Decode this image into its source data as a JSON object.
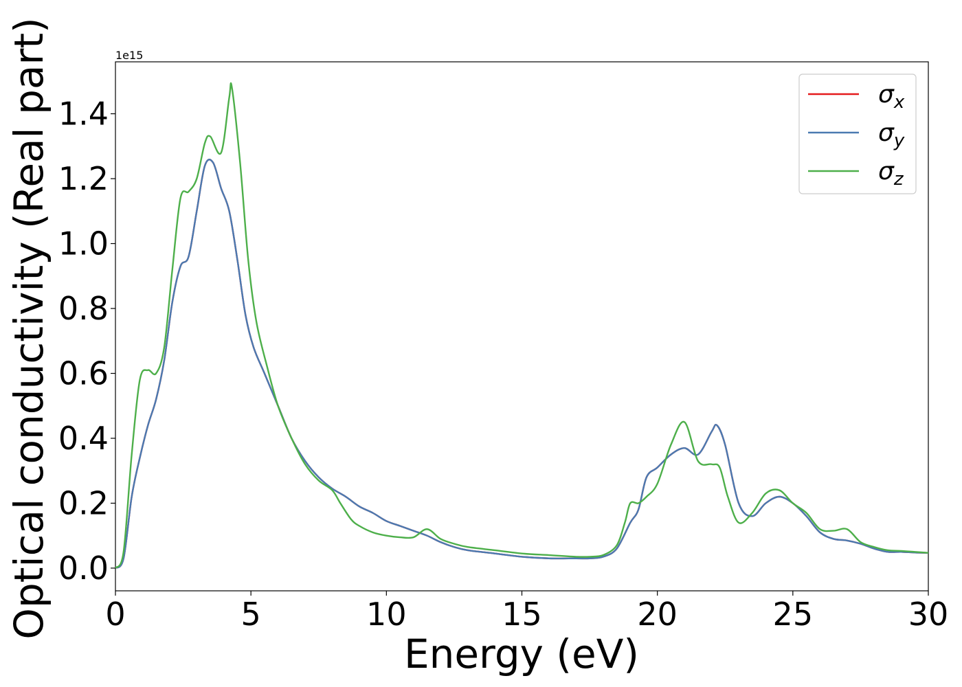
{
  "chart_data": {
    "type": "line",
    "xlabel": "Energy (eV)",
    "ylabel": "Optical conductivity (Real part)",
    "offset_label": "1e15",
    "xlim": [
      0,
      30
    ],
    "ylim": [
      -0.07,
      1.56
    ],
    "x_ticks": [
      0,
      5,
      10,
      15,
      20,
      25,
      30
    ],
    "x_tick_labels": [
      "0",
      "5",
      "10",
      "15",
      "20",
      "25",
      "30"
    ],
    "y_ticks": [
      0.0,
      0.2,
      0.4,
      0.6,
      0.8,
      1.0,
      1.2,
      1.4
    ],
    "y_tick_labels": [
      "0.0",
      "0.2",
      "0.4",
      "0.6",
      "0.8",
      "1.0",
      "1.2",
      "1.4"
    ],
    "grid": false,
    "legend_position": "top-right",
    "series": [
      {
        "name": "σx",
        "base": "σ",
        "sub": "x",
        "color": "#e41a1c",
        "x": [
          0,
          0.3,
          0.6,
          0.9,
          1.2,
          1.5,
          1.8,
          2.1,
          2.4,
          2.7,
          3.0,
          3.3,
          3.6,
          3.9,
          4.2,
          4.5,
          4.8,
          5.1,
          5.5,
          6.0,
          6.5,
          7.0,
          7.5,
          8.0,
          8.5,
          9.0,
          9.5,
          10.0,
          10.5,
          11.0,
          11.5,
          12.0,
          12.5,
          13.0,
          14.0,
          15.0,
          16.0,
          17.0,
          17.5,
          18.0,
          18.5,
          19.0,
          19.3,
          19.6,
          20.0,
          20.5,
          21.0,
          21.5,
          22.0,
          22.2,
          22.5,
          23.0,
          23.5,
          24.0,
          24.5,
          25.0,
          25.5,
          26.0,
          26.5,
          27.0,
          27.5,
          28.0,
          28.5,
          29.0,
          29.5,
          30.0
        ],
        "y": [
          0.0,
          0.03,
          0.22,
          0.34,
          0.44,
          0.52,
          0.64,
          0.82,
          0.93,
          0.96,
          1.1,
          1.24,
          1.25,
          1.17,
          1.1,
          0.95,
          0.78,
          0.68,
          0.6,
          0.5,
          0.4,
          0.33,
          0.28,
          0.245,
          0.22,
          0.19,
          0.17,
          0.145,
          0.13,
          0.115,
          0.1,
          0.08,
          0.065,
          0.055,
          0.045,
          0.035,
          0.03,
          0.03,
          0.03,
          0.035,
          0.06,
          0.14,
          0.18,
          0.28,
          0.31,
          0.35,
          0.37,
          0.35,
          0.42,
          0.44,
          0.38,
          0.2,
          0.16,
          0.2,
          0.22,
          0.2,
          0.16,
          0.11,
          0.09,
          0.085,
          0.075,
          0.06,
          0.05,
          0.05,
          0.048,
          0.047
        ]
      },
      {
        "name": "σy",
        "base": "σ",
        "sub": "y",
        "color": "#4a7ab1",
        "x": [
          0,
          0.3,
          0.6,
          0.9,
          1.2,
          1.5,
          1.8,
          2.1,
          2.4,
          2.7,
          3.0,
          3.3,
          3.6,
          3.9,
          4.2,
          4.5,
          4.8,
          5.1,
          5.5,
          6.0,
          6.5,
          7.0,
          7.5,
          8.0,
          8.5,
          9.0,
          9.5,
          10.0,
          10.5,
          11.0,
          11.5,
          12.0,
          12.5,
          13.0,
          14.0,
          15.0,
          16.0,
          17.0,
          17.5,
          18.0,
          18.5,
          19.0,
          19.3,
          19.6,
          20.0,
          20.5,
          21.0,
          21.5,
          22.0,
          22.2,
          22.5,
          23.0,
          23.5,
          24.0,
          24.5,
          25.0,
          25.5,
          26.0,
          26.5,
          27.0,
          27.5,
          28.0,
          28.5,
          29.0,
          29.5,
          30.0
        ],
        "y": [
          0.0,
          0.03,
          0.22,
          0.34,
          0.44,
          0.52,
          0.64,
          0.82,
          0.93,
          0.96,
          1.1,
          1.24,
          1.25,
          1.17,
          1.1,
          0.95,
          0.78,
          0.68,
          0.6,
          0.5,
          0.4,
          0.33,
          0.28,
          0.245,
          0.22,
          0.19,
          0.17,
          0.145,
          0.13,
          0.115,
          0.1,
          0.08,
          0.065,
          0.055,
          0.045,
          0.035,
          0.03,
          0.03,
          0.03,
          0.035,
          0.06,
          0.14,
          0.18,
          0.28,
          0.31,
          0.35,
          0.37,
          0.35,
          0.42,
          0.44,
          0.38,
          0.2,
          0.16,
          0.2,
          0.22,
          0.2,
          0.16,
          0.11,
          0.09,
          0.085,
          0.075,
          0.06,
          0.05,
          0.05,
          0.048,
          0.047
        ]
      },
      {
        "name": "σz",
        "base": "σ",
        "sub": "z",
        "color": "#4daf4a",
        "x": [
          0,
          0.3,
          0.6,
          0.9,
          1.2,
          1.5,
          1.8,
          2.1,
          2.4,
          2.7,
          3.0,
          3.3,
          3.5,
          3.9,
          4.2,
          4.3,
          4.6,
          4.9,
          5.2,
          5.6,
          6.0,
          6.5,
          7.0,
          7.5,
          8.0,
          8.3,
          8.7,
          9.0,
          9.5,
          10.0,
          10.5,
          11.0,
          11.5,
          12.0,
          12.5,
          13.0,
          14.0,
          15.0,
          16.0,
          17.0,
          17.5,
          18.0,
          18.5,
          18.8,
          19.0,
          19.3,
          19.6,
          20.0,
          20.5,
          21.0,
          21.5,
          22.0,
          22.3,
          22.6,
          23.0,
          23.5,
          24.0,
          24.5,
          25.0,
          25.5,
          26.0,
          26.5,
          27.0,
          27.5,
          28.0,
          28.5,
          29.0,
          29.5,
          30.0
        ],
        "y": [
          0.0,
          0.05,
          0.35,
          0.58,
          0.61,
          0.6,
          0.68,
          0.92,
          1.14,
          1.16,
          1.2,
          1.31,
          1.33,
          1.28,
          1.45,
          1.48,
          1.25,
          0.95,
          0.76,
          0.62,
          0.5,
          0.4,
          0.32,
          0.27,
          0.24,
          0.2,
          0.15,
          0.13,
          0.11,
          0.1,
          0.095,
          0.095,
          0.12,
          0.09,
          0.075,
          0.065,
          0.055,
          0.045,
          0.04,
          0.035,
          0.035,
          0.04,
          0.07,
          0.14,
          0.2,
          0.2,
          0.22,
          0.26,
          0.38,
          0.45,
          0.33,
          0.32,
          0.31,
          0.22,
          0.14,
          0.17,
          0.23,
          0.24,
          0.2,
          0.17,
          0.12,
          0.115,
          0.12,
          0.08,
          0.065,
          0.055,
          0.053,
          0.05,
          0.047
        ]
      }
    ]
  }
}
